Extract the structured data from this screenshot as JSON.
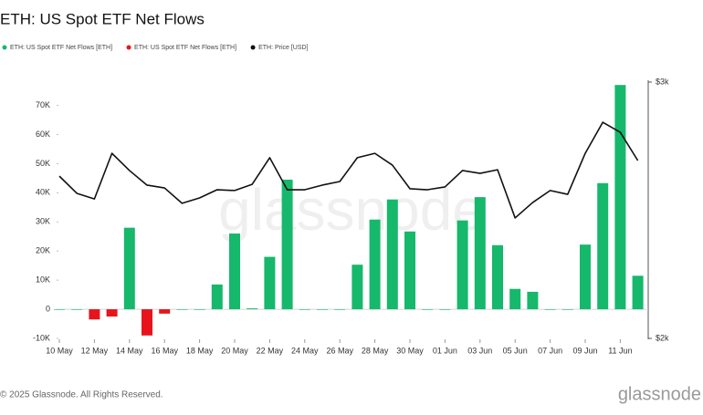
{
  "chart_data": {
    "type": "bar",
    "title": "ETH: US Spot ETF Net Flows",
    "watermark": "glassnode",
    "categories": [
      "10 May",
      null,
      "12 May",
      null,
      "14 May",
      null,
      "16 May",
      null,
      "18 May",
      null,
      "20 May",
      null,
      "22 May",
      null,
      "24 May",
      null,
      "26 May",
      null,
      "28 May",
      null,
      "30 May",
      null,
      "01 Jun",
      null,
      "03 Jun",
      null,
      "05 Jun",
      null,
      "07 Jun",
      null,
      "09 Jun",
      null,
      "11 Jun",
      null
    ],
    "series": [
      {
        "name": "ETH: US Spot ETF Net Flows [ETH]",
        "color": "#16b86b",
        "values": [
          0,
          0,
          null,
          null,
          28000,
          null,
          null,
          0,
          0,
          8500,
          26000,
          300,
          18000,
          44500,
          0,
          0,
          0,
          15300,
          30800,
          37700,
          26700,
          0,
          0,
          30500,
          38500,
          22000,
          7000,
          6000,
          0,
          0,
          22200,
          43300,
          77000,
          11500
        ]
      },
      {
        "name": "ETH: US Spot ETF Net Flows [ETH]",
        "color": "#e8141c",
        "values": [
          null,
          null,
          -3500,
          -2500,
          null,
          -9000,
          -1500,
          null,
          null,
          null,
          null,
          null,
          null,
          null,
          null,
          null,
          null,
          null,
          null,
          null,
          null,
          null,
          null,
          null,
          null,
          null,
          null,
          null,
          null,
          null,
          null,
          null,
          null,
          null
        ]
      },
      {
        "name": "ETH: Price [USD]",
        "color": "#111111",
        "type": "line",
        "axis": "y2",
        "values": [
          2633,
          2566,
          2544,
          2722,
          2655,
          2598,
          2587,
          2527,
          2548,
          2580,
          2577,
          2601,
          2705,
          2580,
          2580,
          2598,
          2612,
          2705,
          2722,
          2676,
          2584,
          2580,
          2591,
          2655,
          2644,
          2658,
          2470,
          2530,
          2577,
          2562,
          2722,
          2843,
          2804,
          2694
        ]
      }
    ],
    "ylim": [
      -10000,
      78000
    ],
    "yticks": [
      {
        "value": -10000,
        "label": "-10K"
      },
      0,
      {
        "value": 10000,
        "label": "10K"
      },
      {
        "value": 20000,
        "label": "20K"
      },
      {
        "value": 30000,
        "label": "30K"
      },
      {
        "value": 40000,
        "label": "40K"
      },
      {
        "value": 50000,
        "label": "50K"
      },
      {
        "value": 60000,
        "label": "60K"
      },
      {
        "value": 70000,
        "label": "70K"
      }
    ],
    "y2lim": [
      2000,
      3000
    ],
    "y2ticks": [
      {
        "value": 2000,
        "label": "$2k"
      },
      {
        "value": 3000,
        "label": "$3k"
      }
    ]
  },
  "footer": {
    "copyright": "© 2025 Glassnode. All Rights Reserved.",
    "logo": "glassnode"
  }
}
